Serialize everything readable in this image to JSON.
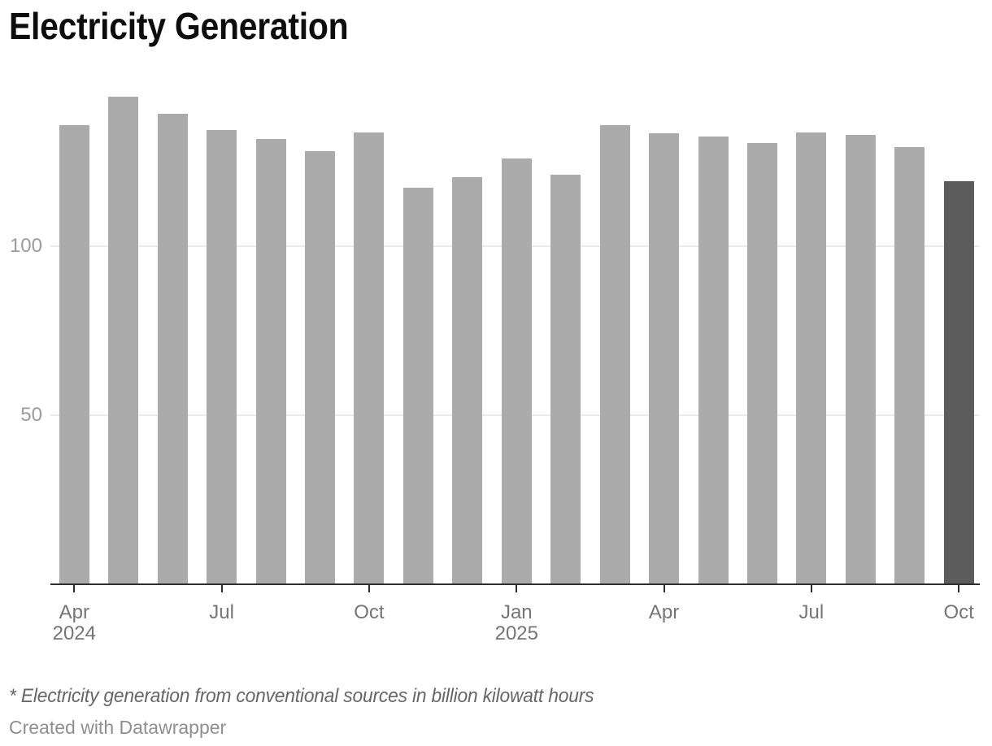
{
  "title": "Electricity Generation",
  "note": "* Electricity generation from conventional sources in billion kilowatt hours",
  "attribution": "Created with Datawrapper",
  "colors": {
    "bar": "#ababab",
    "bar_highlight": "#5c5c5c",
    "axis_line": "#2e2e2e",
    "gridline": "#ebebeb",
    "y_label": "#9b9b9b",
    "x_label": "#757575"
  },
  "chart_data": {
    "type": "bar",
    "title": "Electricity Generation",
    "xlabel": "",
    "ylabel": "",
    "unit": "billion kilowatt hours",
    "categories": [
      "Apr 2024",
      "May 2024",
      "Jun 2024",
      "Jul 2024",
      "Aug 2024",
      "Sep 2024",
      "Oct 2024",
      "Nov 2024",
      "Dec 2024",
      "Jan 2025",
      "Feb 2025",
      "Mar 2025",
      "Apr 2025",
      "May 2025",
      "Jun 2025",
      "Jul 2025",
      "Aug 2025",
      "Sep 2025",
      "Oct 2025"
    ],
    "values": [
      135.8,
      144.4,
      139.2,
      134.4,
      131.9,
      128.3,
      133.8,
      117.3,
      120.5,
      126.0,
      121.3,
      135.8,
      133.4,
      132.6,
      130.7,
      133.8,
      133.1,
      129.4,
      119.2
    ],
    "highlighted_category": "Oct 2025",
    "highlight_index": 18,
    "ylim": [
      0,
      150
    ],
    "y_ticks": [
      50,
      100
    ],
    "grid": true,
    "legend": "none",
    "x_tick_labels": [
      {
        "index": 0,
        "line1": "Apr",
        "line2": "2024"
      },
      {
        "index": 3,
        "line1": "Jul",
        "line2": ""
      },
      {
        "index": 6,
        "line1": "Oct",
        "line2": ""
      },
      {
        "index": 9,
        "line1": "Jan",
        "line2": "2025"
      },
      {
        "index": 12,
        "line1": "Apr",
        "line2": ""
      },
      {
        "index": 15,
        "line1": "Jul",
        "line2": ""
      },
      {
        "index": 18,
        "line1": "Oct",
        "line2": ""
      }
    ]
  }
}
